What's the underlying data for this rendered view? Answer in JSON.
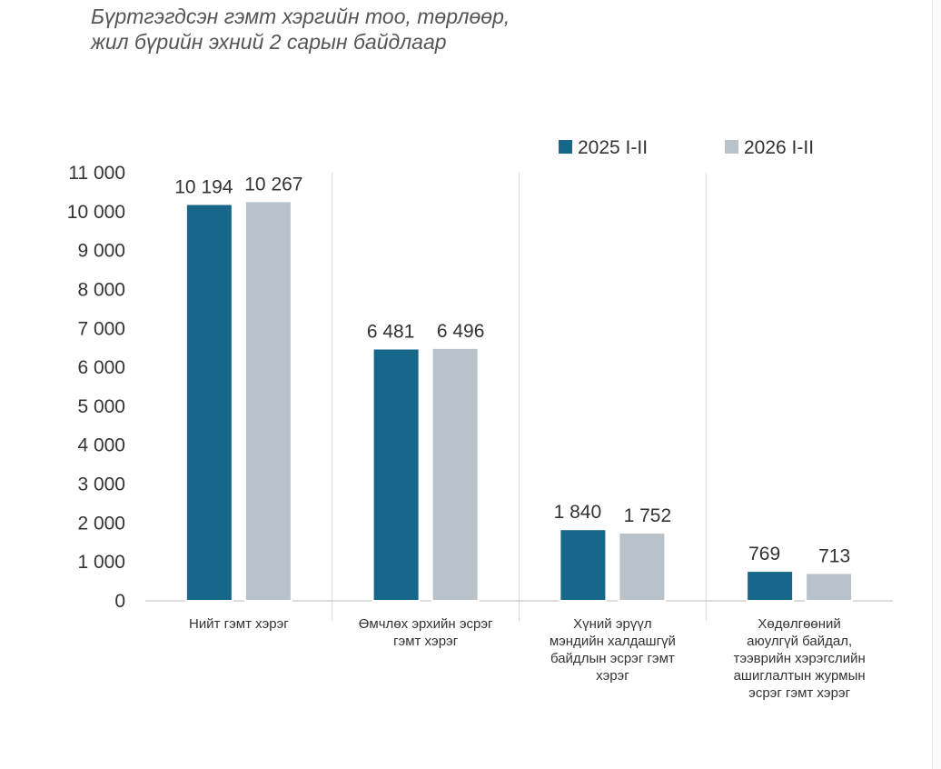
{
  "header": {
    "title_line1": "Бүртгэгдсэн гэмт хэргийн тоо, төрлөөр,",
    "title_line2": "жил бүрийн эхний 2 сарын байдлаар"
  },
  "chart_data": {
    "type": "bar",
    "title": "Бүртгэгдсэн гэмт хэргийн тоо, төрлөөр, жил бүрийн эхний 2 сарын байдлаар",
    "xlabel": "",
    "ylabel": "",
    "ylim": [
      0,
      11000
    ],
    "yticks": [
      0,
      1000,
      2000,
      3000,
      4000,
      5000,
      6000,
      7000,
      8000,
      9000,
      10000,
      11000
    ],
    "ytick_labels": [
      "0",
      "1 000",
      "2 000",
      "3 000",
      "4 000",
      "5 000",
      "6 000",
      "7 000",
      "8 000",
      "9 000",
      "10 000",
      "11 000"
    ],
    "grid": "vertical separators between categories",
    "legend_position": "top-right",
    "categories": [
      [
        "Нийт гэмт хэрэг"
      ],
      [
        "Өмчлөх эрхийн эсрэг",
        "гэмт хэрэг"
      ],
      [
        "Хүний эрүүл",
        "мэндийн халдашгүй",
        "байдлын эсрэг гэмт",
        "хэрэг"
      ],
      [
        "Хөдөлгөөний",
        "аюулгүй байдал,",
        "тээврийн хэрэгслийн",
        "ашиглалтын журмын",
        "эсрэг гэмт хэрэг"
      ]
    ],
    "series": [
      {
        "name": "2025 I-II",
        "color": "#16678a",
        "values": [
          10194,
          6481,
          1840,
          769
        ],
        "labels": [
          "10 194",
          "6 481",
          "1 840",
          "769"
        ]
      },
      {
        "name": "2026 I-II",
        "color": "#b9c1c9",
        "values": [
          10267,
          6496,
          1752,
          713
        ],
        "labels": [
          "10 267",
          "6 496",
          "1 752",
          "713"
        ]
      }
    ]
  }
}
